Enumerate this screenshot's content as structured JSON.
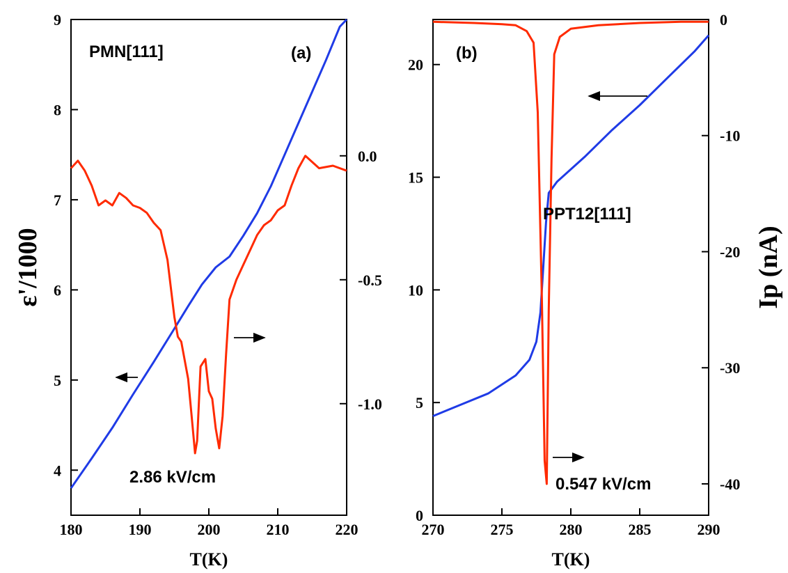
{
  "colors": {
    "epsilon_line": "#1f3be6",
    "current_line": "#ff2a00",
    "arrow": "#000000"
  },
  "chart_data": [
    {
      "panel": "a",
      "type": "line",
      "panel_label": "(a)",
      "sample_label": "PMN[111]",
      "field_label": "2.86 kV/cm",
      "xlabel": "T(K)",
      "ylabel_left": "ε'/1000",
      "xlim": [
        180,
        220
      ],
      "ylim_left": [
        3.5,
        9
      ],
      "ylim_right": [
        -1.45,
        0.55
      ],
      "xticks": [
        "180",
        "190",
        "200",
        "210",
        "220"
      ],
      "yticks_left": [
        "4",
        "5",
        "6",
        "7",
        "8",
        "9"
      ],
      "yticks_right": [
        "0.0",
        "-0.5",
        "-1.0"
      ],
      "series": [
        {
          "axis": "left",
          "color_key": "epsilon_line",
          "x": [
            180,
            183,
            186,
            189,
            192,
            195,
            197,
            199,
            201,
            203,
            205,
            207,
            209,
            211,
            213,
            215,
            217,
            219,
            220
          ],
          "y": [
            3.8,
            4.13,
            4.47,
            4.84,
            5.2,
            5.57,
            5.82,
            6.06,
            6.25,
            6.37,
            6.6,
            6.85,
            7.15,
            7.5,
            7.85,
            8.2,
            8.55,
            8.92,
            9.0
          ]
        },
        {
          "axis": "right",
          "color_key": "current_line",
          "x": [
            180,
            181,
            182,
            183,
            184,
            185,
            186,
            187,
            188,
            189,
            190,
            191,
            192,
            193,
            194,
            195,
            195.5,
            196,
            197,
            197.5,
            198,
            198.3,
            198.8,
            199.5,
            200,
            200.5,
            201,
            201.5,
            202,
            202.5,
            203,
            204,
            205,
            206,
            207,
            208,
            209,
            210,
            211,
            212,
            213,
            214,
            216,
            218,
            220
          ],
          "y": [
            -0.05,
            -0.02,
            -0.06,
            -0.12,
            -0.2,
            -0.18,
            -0.2,
            -0.15,
            -0.17,
            -0.2,
            -0.21,
            -0.23,
            -0.27,
            -0.3,
            -0.42,
            -0.65,
            -0.73,
            -0.75,
            -0.9,
            -1.05,
            -1.2,
            -1.15,
            -0.85,
            -0.82,
            -0.95,
            -0.98,
            -1.1,
            -1.18,
            -1.05,
            -0.8,
            -0.58,
            -0.5,
            -0.44,
            -0.38,
            -0.32,
            -0.28,
            -0.26,
            -0.22,
            -0.2,
            -0.12,
            -0.05,
            0.0,
            -0.05,
            -0.04,
            -0.06
          ]
        }
      ]
    },
    {
      "panel": "b",
      "type": "line",
      "panel_label": "(b)",
      "sample_label": "PPT12[111]",
      "field_label": "0.547 kV/cm",
      "xlabel": "T(K)",
      "ylabel_right": "Ip (nA)",
      "xlim": [
        270,
        290
      ],
      "ylim_left": [
        0,
        22
      ],
      "ylim_right": [
        -42.7,
        0
      ],
      "xticks": [
        "270",
        "275",
        "280",
        "285",
        "290"
      ],
      "yticks_left": [
        "0",
        "5",
        "10",
        "15",
        "20"
      ],
      "yticks_right": [
        "0",
        "-10",
        "-20",
        "-30",
        "-40"
      ],
      "series": [
        {
          "axis": "left",
          "color_key": "epsilon_line",
          "x": [
            270,
            272,
            274,
            276,
            277,
            277.5,
            277.8,
            278,
            278.2,
            278.4,
            279,
            281,
            283,
            285,
            287,
            289,
            290
          ],
          "y": [
            4.4,
            4.9,
            5.4,
            6.2,
            6.9,
            7.7,
            9.0,
            11.0,
            13.0,
            14.3,
            14.8,
            15.9,
            17.1,
            18.2,
            19.4,
            20.6,
            21.3
          ]
        },
        {
          "axis": "right",
          "color_key": "current_line",
          "x": [
            270,
            273,
            275,
            276,
            276.8,
            277.3,
            277.6,
            277.9,
            278.1,
            278.25,
            278.4,
            278.6,
            278.8,
            279.2,
            280,
            282,
            285,
            288,
            290
          ],
          "y": [
            -0.2,
            -0.3,
            -0.4,
            -0.5,
            -1.0,
            -2.0,
            -8.0,
            -24.0,
            -38.0,
            -40.0,
            -25.0,
            -12.0,
            -3.0,
            -1.5,
            -0.8,
            -0.5,
            -0.3,
            -0.2,
            -0.2
          ]
        }
      ]
    }
  ]
}
